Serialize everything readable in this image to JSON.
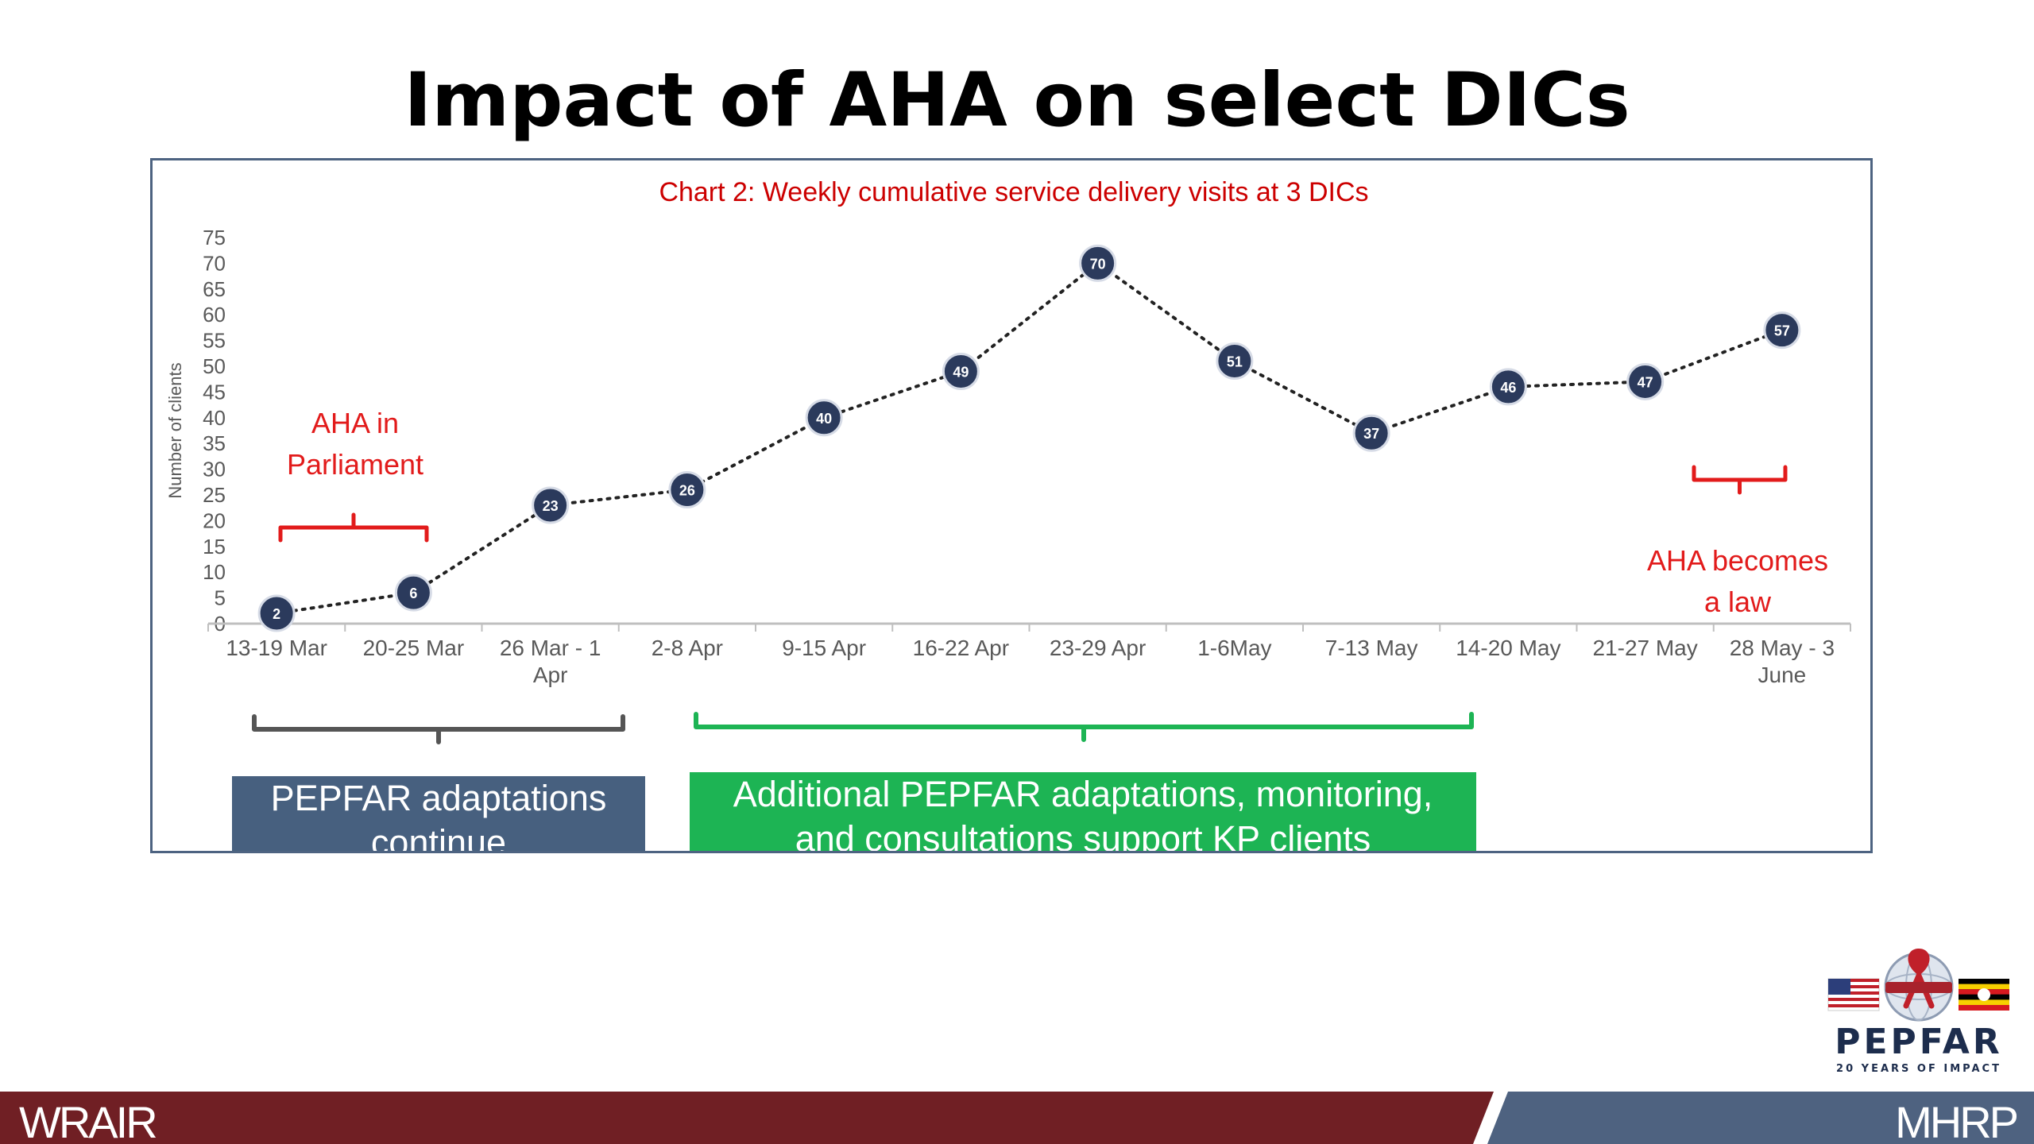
{
  "slide": {
    "title": "Impact of AHA on select DICs"
  },
  "chart_data": {
    "type": "line",
    "title": "Chart 2: Weekly cumulative service delivery visits at 3 DICs",
    "ylabel": "Number of clients",
    "xlabel": "",
    "ylim": [
      0,
      75
    ],
    "yticks": [
      "0",
      "5",
      "10",
      "15",
      "20",
      "25",
      "30",
      "35",
      "40",
      "45",
      "50",
      "55",
      "60",
      "65",
      "70",
      "75"
    ],
    "categories": [
      [
        "13-19 Mar"
      ],
      [
        "20-25 Mar"
      ],
      [
        "26 Mar - 1",
        "Apr"
      ],
      [
        "2-8 Apr"
      ],
      [
        "9-15 Apr"
      ],
      [
        "16-22 Apr"
      ],
      [
        "23-29 Apr"
      ],
      [
        "1-6May"
      ],
      [
        "7-13 May"
      ],
      [
        "14-20 May"
      ],
      [
        "21-27 May"
      ],
      [
        "28 May - 3",
        "June"
      ]
    ],
    "values": [
      2,
      6,
      23,
      26,
      40,
      49,
      70,
      51,
      37,
      46,
      47,
      57
    ],
    "data_labels": [
      "2",
      "6",
      "23",
      "26",
      "40",
      "49",
      "70",
      "51",
      "37",
      "46",
      "47",
      "57"
    ],
    "grid": false,
    "legend": "none",
    "line_style": "dotted",
    "colors": {
      "line": "#222222",
      "marker": "#2b3a5c",
      "title": "#cc0000",
      "axis_text": "#595959"
    }
  },
  "annotations": {
    "parliament": [
      "AHA in",
      "Parliament"
    ],
    "law": [
      "AHA becomes",
      "a law"
    ],
    "pepfar_box": [
      "PEPFAR adaptations",
      "continue"
    ],
    "additional_box": [
      "Additional PEPFAR adaptations, monitoring,",
      "and consultations support KP clients"
    ],
    "colors": {
      "red": "#e21b1b",
      "gray_brace": "#555555",
      "green_brace": "#1db454",
      "pepfar_box": "#47607f",
      "additional_box": "#1db454"
    }
  },
  "footer": {
    "left_text": "WRAIR",
    "right_text": "MHRP",
    "colors": {
      "left": "#701f24",
      "right": "#4e6280"
    }
  },
  "logo": {
    "word": "PEPFAR",
    "tagline": "20 YEARS OF IMPACT"
  }
}
